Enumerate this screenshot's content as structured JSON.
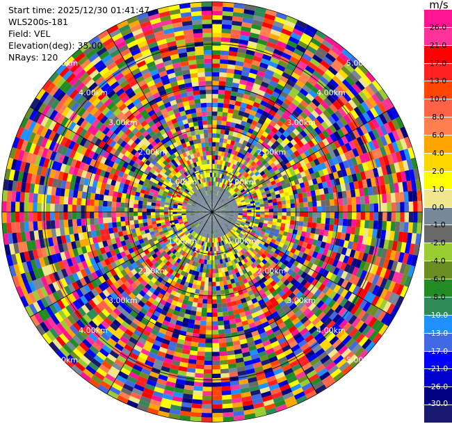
{
  "header": {
    "start_time": "Start time: 2025/12/30 01:41:47",
    "instrument": "WLS200s-181",
    "field": "Field: VEL",
    "elevation": "Elevation(deg): 35.00",
    "nrays": "NRays: 120"
  },
  "chart_data": {
    "type": "heatmap",
    "projection": "polar PPI",
    "field": "VEL",
    "rays": 120,
    "range_rings": [
      "1.00km",
      "2.00km",
      "3.00km",
      "4.00km",
      "5.00km"
    ],
    "colorbar": {
      "unit": "m/s",
      "ticks": [
        "26.0",
        "21.0",
        "17.0",
        "13.0",
        "10.0",
        "8.0",
        "6.0",
        "4.0",
        "2.0",
        "1.0",
        "0.0",
        "-1.0",
        "-2.0",
        "-4.0",
        "-6.0",
        "-8.0",
        "-10.0",
        "-13.0",
        "-17.0",
        "-21.0",
        "-26.0",
        "-30.0"
      ],
      "colors": [
        "#ff1493",
        "#ff3399",
        "#ff0000",
        "#ff2222",
        "#ff4500",
        "#ff6347",
        "#ff7f50",
        "#ffa500",
        "#ffd700",
        "#ffff00",
        "#f0e68c",
        "#778899",
        "#696969",
        "#9acd32",
        "#6b8e23",
        "#228b22",
        "#2e8b57",
        "#1e90ff",
        "#4169e1",
        "#0000ff",
        "#0000cd",
        "#000080",
        "#191970"
      ]
    }
  }
}
